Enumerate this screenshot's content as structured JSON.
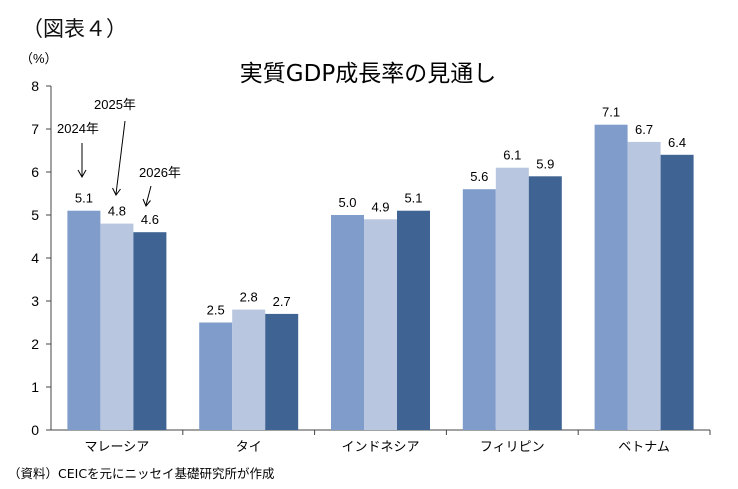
{
  "figure_label": "（図表４）",
  "source_note": "（資料）CEICを元にニッセイ基礎研究所が作成",
  "chart_data": {
    "type": "bar",
    "title": "実質GDP成長率の見通し",
    "ylabel": "（%）",
    "xlabel": "",
    "ylim": [
      0,
      8
    ],
    "yticks": [
      "0",
      "1",
      "2",
      "3",
      "4",
      "5",
      "6",
      "7",
      "8"
    ],
    "grid": false,
    "legend": "none (series labelled by arrow annotations on first group)",
    "categories": [
      "マレーシア",
      "タイ",
      "インドネシア",
      "フィリピン",
      "ベトナム"
    ],
    "series": [
      {
        "name": "2024年",
        "color": "#7f9ccb",
        "values": [
          5.1,
          2.5,
          5.0,
          5.6,
          7.1
        ],
        "labels": [
          "5.1",
          "2.5",
          "5.0",
          "5.6",
          "7.1"
        ]
      },
      {
        "name": "2025年",
        "color": "#b8c6e0",
        "values": [
          4.8,
          2.8,
          4.9,
          6.1,
          6.7
        ],
        "labels": [
          "4.8",
          "2.8",
          "4.9",
          "6.1",
          "6.7"
        ]
      },
      {
        "name": "2026年",
        "color": "#3f6494",
        "values": [
          4.6,
          2.7,
          5.1,
          5.9,
          6.4
        ],
        "labels": [
          "4.6",
          "2.7",
          "5.1",
          "5.9",
          "6.4"
        ]
      }
    ]
  }
}
